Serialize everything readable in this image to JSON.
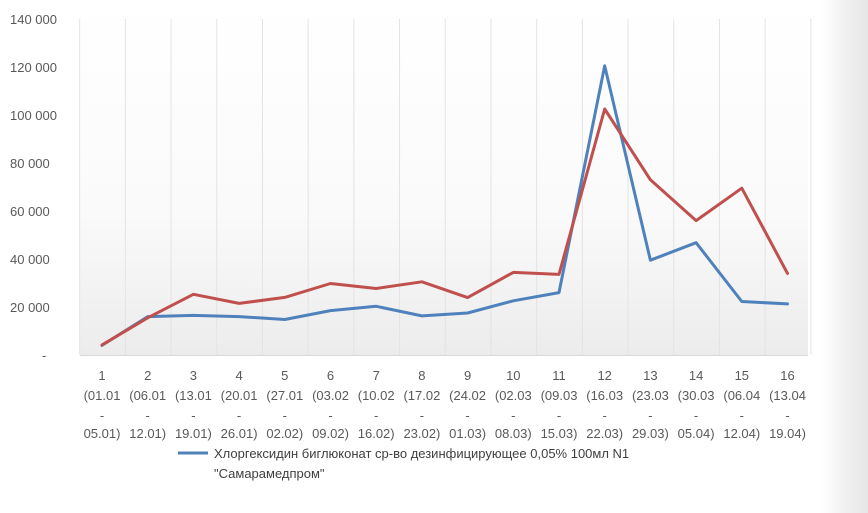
{
  "chart_data": {
    "type": "line",
    "title": "",
    "xlabel": "",
    "ylabel": "",
    "ylim": [
      0,
      140000
    ],
    "y_ticks": [
      {
        "value": 0,
        "label": "-"
      },
      {
        "value": 20000,
        "label": "20 000"
      },
      {
        "value": 40000,
        "label": "40 000"
      },
      {
        "value": 60000,
        "label": "60 000"
      },
      {
        "value": 80000,
        "label": "80 000"
      },
      {
        "value": 100000,
        "label": "100 000"
      },
      {
        "value": 120000,
        "label": "120 000"
      },
      {
        "value": 140000,
        "label": "140 000"
      }
    ],
    "categories": [
      {
        "num": "1",
        "start": "(01.01",
        "sep": "-",
        "end": "05.01)"
      },
      {
        "num": "2",
        "start": "(06.01",
        "sep": "-",
        "end": "12.01)"
      },
      {
        "num": "3",
        "start": "(13.01",
        "sep": "-",
        "end": "19.01)"
      },
      {
        "num": "4",
        "start": "(20.01",
        "sep": "-",
        "end": "26.01)"
      },
      {
        "num": "5",
        "start": "(27.01",
        "sep": "-",
        "end": "02.02)"
      },
      {
        "num": "6",
        "start": "(03.02",
        "sep": "-",
        "end": "09.02)"
      },
      {
        "num": "7",
        "start": "(10.02",
        "sep": "-",
        "end": "16.02)"
      },
      {
        "num": "8",
        "start": "(17.02",
        "sep": "-",
        "end": "23.02)"
      },
      {
        "num": "9",
        "start": "(24.02",
        "sep": "-",
        "end": "01.03)"
      },
      {
        "num": "10",
        "start": "(02.03",
        "sep": "-",
        "end": "08.03)"
      },
      {
        "num": "11",
        "start": "(09.03",
        "sep": "-",
        "end": "15.03)"
      },
      {
        "num": "12",
        "start": "(16.03",
        "sep": "-",
        "end": "22.03)"
      },
      {
        "num": "13",
        "start": "(23.03",
        "sep": "-",
        "end": "29.03)"
      },
      {
        "num": "14",
        "start": "(30.03",
        "sep": "-",
        "end": "05.04)"
      },
      {
        "num": "15",
        "start": "(06.04",
        "sep": "-",
        "end": "12.04)"
      },
      {
        "num": "16",
        "start": "(13.04",
        "sep": "-",
        "end": "19.04)"
      }
    ],
    "series": [
      {
        "name": "Хлоргексидин биглюконат ср-во дезинфицирующее 0,05% 100мл N1 \"Самарамедпром\"",
        "legend_lines": [
          "Хлоргексидин биглюконат ср-во дезинфицирующее 0,05% 100мл N1",
          "\"Самарамедпром\""
        ],
        "color": "#4f81bd",
        "values": [
          4000,
          16000,
          16500,
          16000,
          14800,
          18500,
          20300,
          16300,
          17500,
          22600,
          26000,
          120500,
          39500,
          46800,
          22300,
          21300
        ]
      },
      {
        "color": "#c0504d",
        "values": [
          4200,
          15500,
          25300,
          21500,
          24000,
          29800,
          27700,
          30500,
          23900,
          34400,
          33600,
          102500,
          73000,
          56000,
          69500,
          34000
        ]
      }
    ],
    "grid": {
      "vertical": true,
      "horizontal": false
    },
    "legend": "bottom",
    "plot_background": "gradient-white-to-lightgray"
  }
}
